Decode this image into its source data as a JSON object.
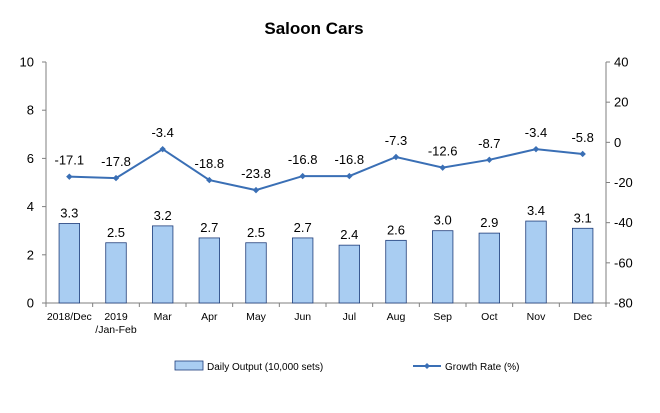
{
  "chart_data": {
    "type": "bar",
    "title": "Saloon Cars",
    "categories": [
      "2018/Dec",
      "2019\n/Jan-Feb",
      "Mar",
      "Apr",
      "May",
      "Jun",
      "Jul",
      "Aug",
      "Sep",
      "Oct",
      "Nov",
      "Dec"
    ],
    "series": [
      {
        "name": "Daily Output (10,000 sets)",
        "type": "bar",
        "axis": "left",
        "values": [
          3.3,
          2.5,
          3.2,
          2.7,
          2.5,
          2.7,
          2.4,
          2.6,
          3.0,
          2.9,
          3.4,
          3.1
        ],
        "labels": [
          "3.3",
          "2.5",
          "3.2",
          "2.7",
          "2.5",
          "2.7",
          "2.4",
          "2.6",
          "3.0",
          "2.9",
          "3.4",
          "3.1"
        ],
        "color": "#a9cdf2",
        "stroke": "#1f3d7a"
      },
      {
        "name": "Growth Rate (%)",
        "type": "line",
        "axis": "right",
        "values": [
          -17.1,
          -17.8,
          -3.4,
          -18.8,
          -23.8,
          -16.8,
          -16.8,
          -7.3,
          -12.6,
          -8.7,
          -3.4,
          -5.8
        ],
        "labels": [
          "-17.1",
          "-17.8",
          "-3.4",
          "-18.8",
          "-23.8",
          "-16.8",
          "-16.8",
          "-7.3",
          "-12.6",
          "-8.7",
          "-3.4",
          "-5.8"
        ],
        "color": "#3a6fb5"
      }
    ],
    "y_left": {
      "min": 0,
      "max": 10,
      "ticks": [
        "0",
        "2",
        "4",
        "6",
        "8",
        "10"
      ]
    },
    "y_right": {
      "min": -80,
      "max": 40,
      "ticks": [
        "-80",
        "-60",
        "-40",
        "-20",
        "0",
        "20",
        "40"
      ]
    },
    "legend_position": "bottom",
    "grid": false
  }
}
